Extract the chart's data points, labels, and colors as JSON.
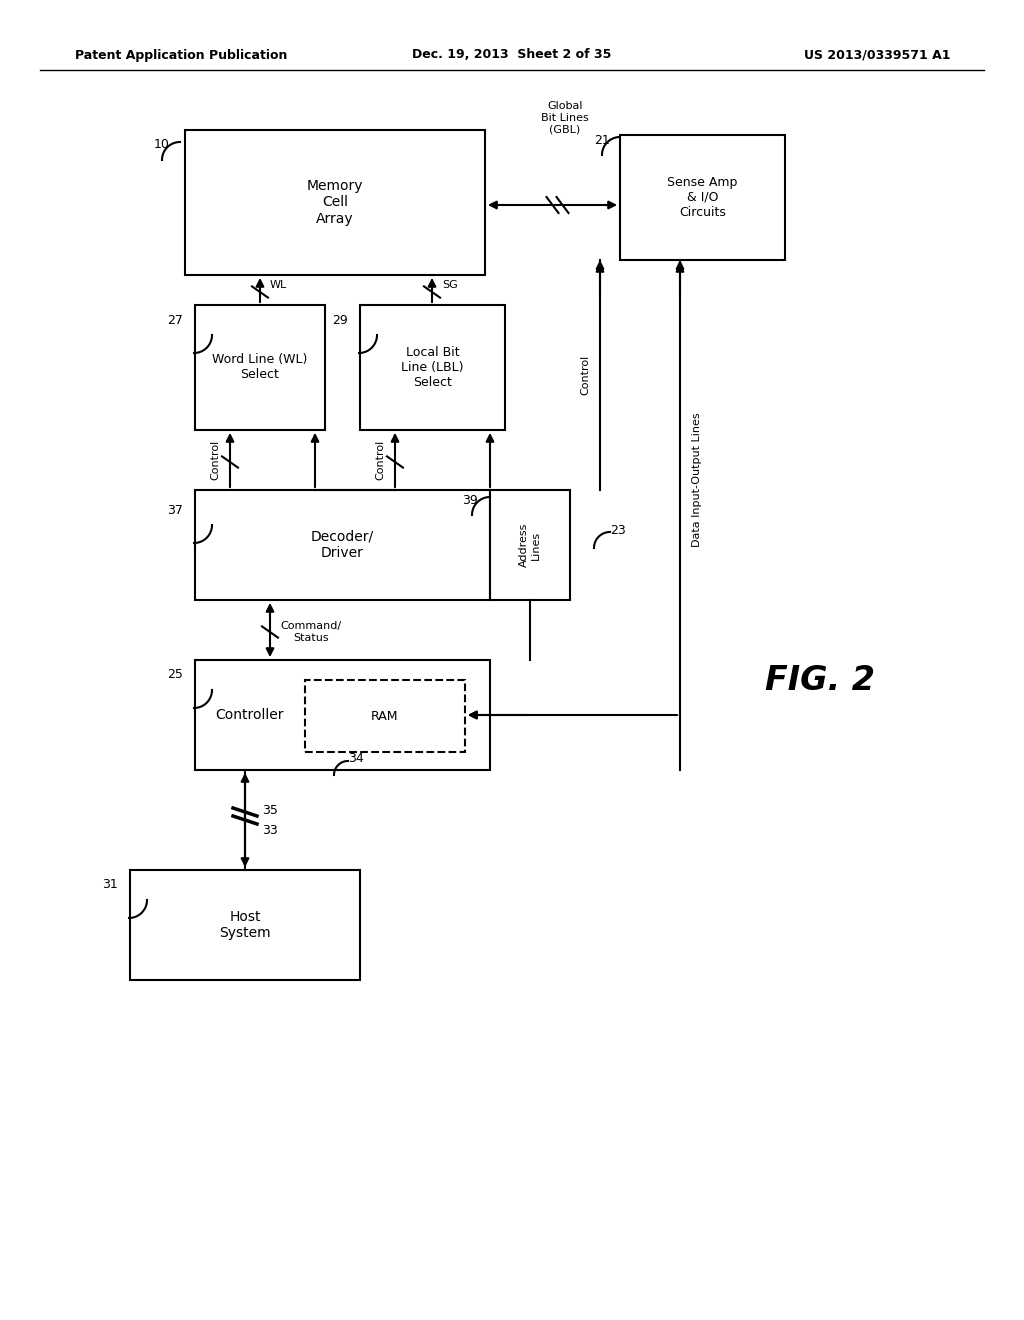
{
  "bg_color": "#ffffff",
  "header_left": "Patent Application Publication",
  "header_mid": "Dec. 19, 2013  Sheet 2 of 35",
  "header_right": "US 2013/0339571 A1",
  "fig_label": "FIG. 2"
}
